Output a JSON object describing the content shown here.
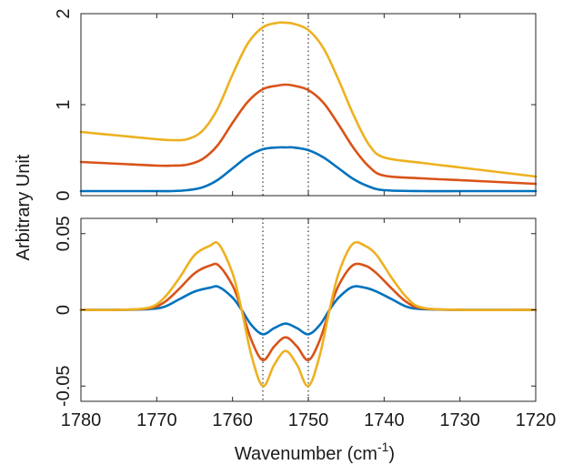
{
  "figure": {
    "ylabel": "Arbitrary Unit",
    "xlabel_main": "Wavenumber (cm",
    "xlabel_sup": "-1",
    "xlabel_tail": ")"
  },
  "chart_data": [
    {
      "type": "line",
      "panel": "top",
      "xlim": [
        1780,
        1720
      ],
      "x_reversed": true,
      "ylim": [
        0,
        2
      ],
      "yticks": [
        0,
        1,
        2
      ],
      "ytick_labels": [
        "0",
        "1",
        "2"
      ],
      "xticks": [
        1780,
        1770,
        1760,
        1750,
        1740,
        1730,
        1720
      ],
      "vlines": [
        1756,
        1750
      ],
      "grid": false,
      "x": [
        1780,
        1775,
        1770,
        1768,
        1766,
        1764,
        1762,
        1760,
        1758,
        1756,
        1754,
        1753,
        1752,
        1750,
        1748,
        1746,
        1744,
        1742,
        1740,
        1735,
        1730,
        1725,
        1720
      ],
      "series": [
        {
          "color": "#0072BD",
          "values": [
            0.05,
            0.05,
            0.05,
            0.05,
            0.06,
            0.09,
            0.17,
            0.3,
            0.43,
            0.51,
            0.53,
            0.53,
            0.53,
            0.5,
            0.42,
            0.3,
            0.18,
            0.1,
            0.06,
            0.05,
            0.05,
            0.05,
            0.05
          ]
        },
        {
          "color": "#D95319",
          "values": [
            0.37,
            0.35,
            0.33,
            0.33,
            0.34,
            0.4,
            0.55,
            0.8,
            1.03,
            1.17,
            1.21,
            1.22,
            1.21,
            1.16,
            1.02,
            0.78,
            0.52,
            0.32,
            0.22,
            0.19,
            0.17,
            0.15,
            0.13
          ]
        },
        {
          "color": "#EDB120",
          "values": [
            0.7,
            0.66,
            0.62,
            0.61,
            0.62,
            0.71,
            0.95,
            1.33,
            1.67,
            1.85,
            1.9,
            1.9,
            1.89,
            1.82,
            1.62,
            1.27,
            0.88,
            0.56,
            0.42,
            0.36,
            0.31,
            0.26,
            0.21
          ]
        }
      ]
    },
    {
      "type": "line",
      "panel": "bottom",
      "xlim": [
        1780,
        1720
      ],
      "x_reversed": true,
      "ylim": [
        -0.06,
        0.06
      ],
      "yticks": [
        -0.05,
        0,
        0.05
      ],
      "ytick_labels": [
        "-0.05",
        "0",
        "0.05"
      ],
      "xticks": [
        1780,
        1770,
        1760,
        1750,
        1740,
        1730,
        1720
      ],
      "xtick_labels": [
        "1780",
        "1770",
        "1760",
        "1750",
        "1740",
        "1730",
        "1720"
      ],
      "vlines": [
        1756,
        1750
      ],
      "grid": false,
      "x": [
        1780,
        1775,
        1771,
        1769,
        1767,
        1765,
        1763,
        1761.8,
        1760,
        1758.8,
        1757.5,
        1756,
        1754.5,
        1753,
        1751.5,
        1750,
        1748.5,
        1747.2,
        1746,
        1744.2,
        1742.5,
        1741,
        1739,
        1737,
        1735,
        1730,
        1720
      ],
      "series": [
        {
          "color": "#0072BD",
          "values": [
            0,
            0,
            0.0005,
            0.002,
            0.007,
            0.012,
            0.0145,
            0.015,
            0.008,
            0.0,
            -0.01,
            -0.016,
            -0.012,
            -0.009,
            -0.012,
            -0.016,
            -0.01,
            0.0,
            0.008,
            0.015,
            0.0145,
            0.012,
            0.007,
            0.002,
            0.0005,
            0,
            0
          ]
        },
        {
          "color": "#D95319",
          "values": [
            0,
            0,
            0.001,
            0.005,
            0.014,
            0.024,
            0.029,
            0.029,
            0.016,
            0.0,
            -0.02,
            -0.033,
            -0.024,
            -0.018,
            -0.024,
            -0.033,
            -0.02,
            0.0,
            0.016,
            0.029,
            0.029,
            0.024,
            0.014,
            0.005,
            0.001,
            0,
            0
          ]
        },
        {
          "color": "#EDB120",
          "values": [
            0,
            0,
            0.0015,
            0.008,
            0.021,
            0.036,
            0.042,
            0.043,
            0.024,
            0.0,
            -0.03,
            -0.05,
            -0.036,
            -0.027,
            -0.036,
            -0.05,
            -0.03,
            0.0,
            0.024,
            0.043,
            0.042,
            0.036,
            0.021,
            0.008,
            0.0015,
            0,
            0
          ]
        }
      ]
    }
  ]
}
